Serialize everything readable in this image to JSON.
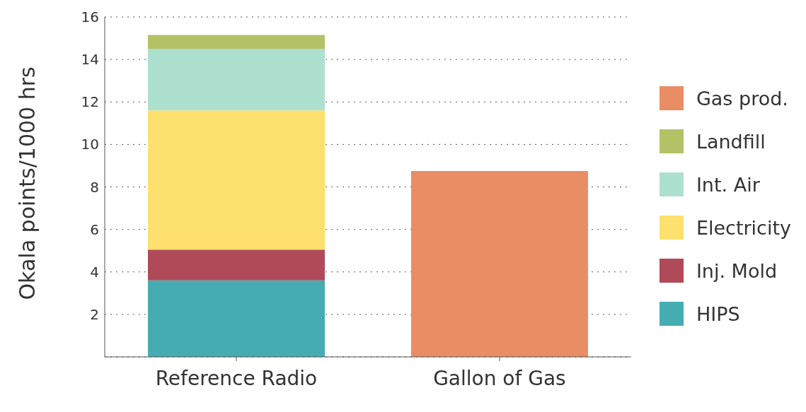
{
  "chart_data": {
    "type": "bar",
    "stacked": true,
    "ylabel": "Okala  points/1000 hrs",
    "categories": [
      "Reference Radio",
      "Gallon of Gas"
    ],
    "series": [
      {
        "name": "HIPS",
        "color": "#45adb1",
        "values": [
          3.6,
          null
        ]
      },
      {
        "name": "Inj. Mold",
        "color": "#b04a58",
        "values": [
          1.45,
          null
        ]
      },
      {
        "name": "Electricity",
        "color": "#fde06e",
        "values": [
          6.55,
          null
        ]
      },
      {
        "name": "Int. Air",
        "color": "#aee0d0",
        "values": [
          2.9,
          null
        ]
      },
      {
        "name": "Landfill",
        "color": "#b5c167",
        "values": [
          0.65,
          null
        ]
      },
      {
        "name": "Gas prod.",
        "color": "#e98d64",
        "values": [
          null,
          8.75
        ]
      }
    ],
    "ylim": [
      0,
      16
    ],
    "yticks": [
      {
        "value": 0,
        "label": null
      },
      2,
      4,
      6,
      8,
      10,
      12,
      14,
      16
    ],
    "grid": "y",
    "legend": "right"
  }
}
